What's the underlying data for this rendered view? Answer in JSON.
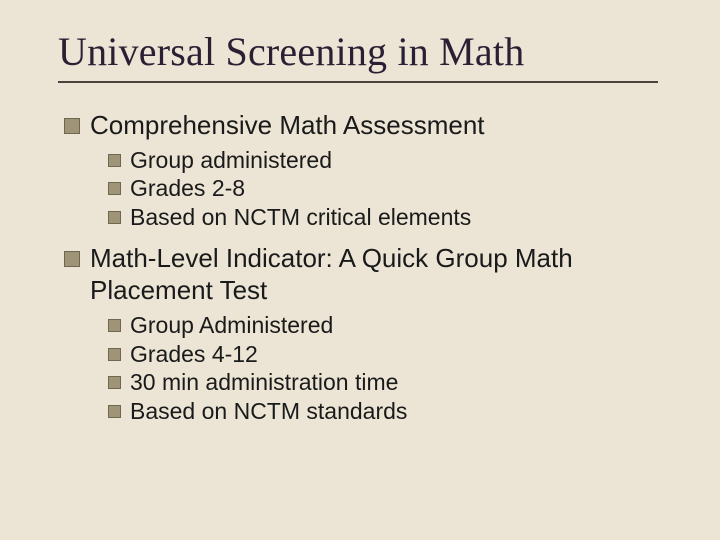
{
  "colors": {
    "background": "#ece5d6",
    "title_color": "#2a1f33",
    "rule_color": "#4a4440",
    "text_color": "#1a1a1a",
    "bullet_fill": "#9f9478",
    "bullet_border": "#6f6850"
  },
  "typography": {
    "title_font": "Times New Roman",
    "title_size_pt": 30,
    "body_font": "Arial",
    "lvl1_size_pt": 20,
    "lvl2_size_pt": 17
  },
  "title": "Universal Screening in Math",
  "items": [
    {
      "label": "Comprehensive Math Assessment",
      "sub": [
        "Group administered",
        "Grades 2-8",
        "Based on NCTM critical elements"
      ]
    },
    {
      "label": "Math-Level Indicator: A Quick Group Math Placement Test",
      "sub": [
        "Group Administered",
        "Grades 4-12",
        "30 min administration time",
        "Based on NCTM standards"
      ]
    }
  ]
}
